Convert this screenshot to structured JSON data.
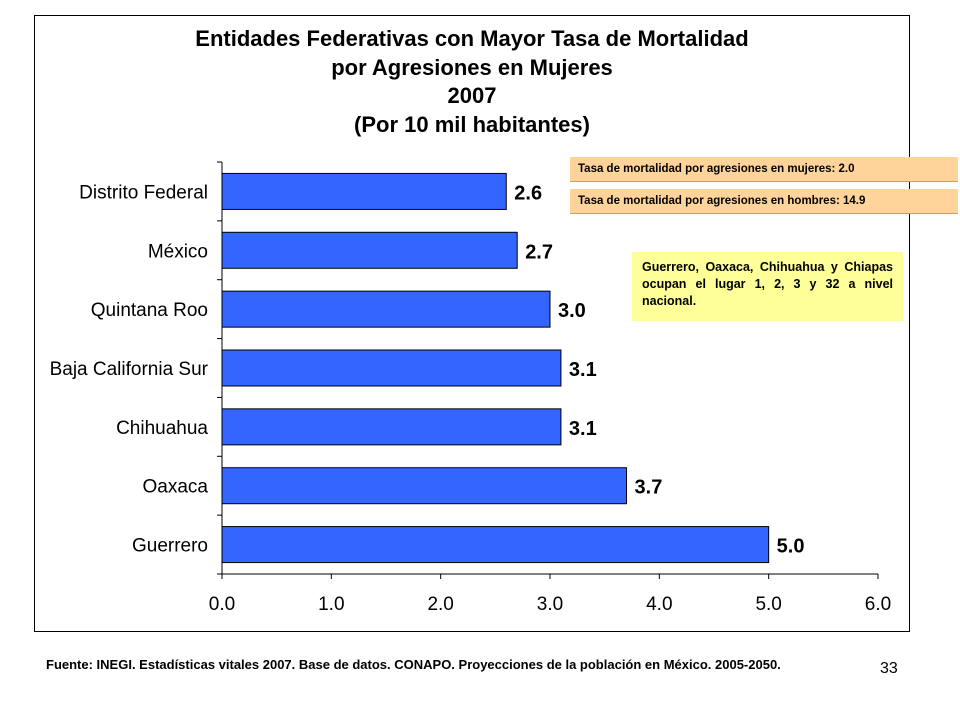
{
  "chart_data": {
    "type": "bar",
    "orientation": "horizontal",
    "title": [
      "Entidades Federativas con Mayor Tasa de Mortalidad",
      "por Agresiones en Mujeres",
      "2007",
      "(Por 10 mil habitantes)"
    ],
    "categories": [
      "Distrito Federal",
      "México",
      "Quintana Roo",
      "Baja California Sur",
      "Chihuahua",
      "Oaxaca",
      "Guerrero"
    ],
    "values": [
      2.6,
      2.7,
      3.0,
      3.1,
      3.1,
      3.7,
      5.0
    ],
    "value_labels": [
      "2.6",
      "2.7",
      "3.0",
      "3.1",
      "3.1",
      "3.7",
      "5.0"
    ],
    "xlim": [
      0,
      6
    ],
    "xticks": [
      "0.0",
      "1.0",
      "2.0",
      "3.0",
      "4.0",
      "5.0",
      "6.0"
    ],
    "bar_color": "#3366ff",
    "bar_edge_color": "#000000",
    "grid": false,
    "legend": "none"
  },
  "notes": {
    "women_rate": "Tasa de mortalidad por agresiones en mujeres: 2.0",
    "men_rate": "Tasa de mortalidad por agresiones en hombres: 14.9",
    "note_color": "#ffd49a"
  },
  "callout": {
    "text": "Guerrero, Oaxaca, Chihuahua y Chiapas ocupan el lugar 1, 2, 3 y 32 a nivel nacional.",
    "color": "#ffff99"
  },
  "footer": {
    "source": "Fuente: INEGI. Estadísticas vitales 2007. Base de datos. CONAPO. Proyecciones de la población en México. 2005-2050.",
    "page_number": "33"
  }
}
